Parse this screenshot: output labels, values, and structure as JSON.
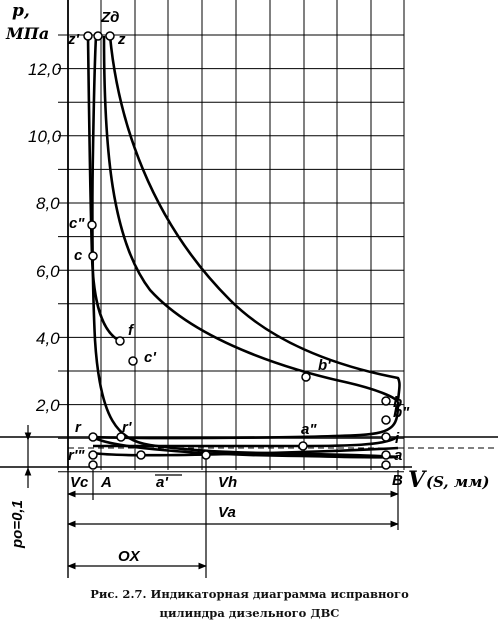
{
  "chart_data": {
    "type": "line",
    "y_axis_label_line1": "p,",
    "y_axis_label_line2": "МПа",
    "y_ticks": [
      "12,0",
      "10,0",
      "8,0",
      "6,0",
      "4,0",
      "2,0"
    ],
    "x_axis_label_V": "V",
    "x_axis_label_S": "(S, мм)",
    "points": {
      "z_prime": "z'",
      "z_d": "Zд",
      "z": "z",
      "c_dprime": "c\"",
      "c": "c",
      "f": "f",
      "c_prime": "c'",
      "b_prime": "b'",
      "b": "b",
      "b_dprime": "b\"",
      "i": "i",
      "a_dprime": "a\"",
      "a": "a",
      "r": "r",
      "r_prime": "r'",
      "r_tprime": "r'\"",
      "a_prime": "a'",
      "A": "A",
      "B": "B"
    },
    "dimensions": {
      "Vc": "Vc",
      "Vh": "Vh",
      "Va": "Va",
      "OX": "OX",
      "po": "po=0,1"
    }
  },
  "caption": {
    "line1": "Рис. 2.7. Индикаторная диаграмма исправного",
    "line2": "цилиндра дизельного ДВС"
  }
}
